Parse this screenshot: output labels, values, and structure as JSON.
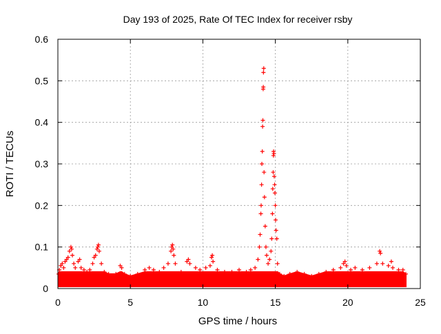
{
  "chart_data": {
    "type": "scatter",
    "title": "Day 193 of 2025, Rate Of TEC Index for receiver rsby",
    "xlabel": "GPS time / hours",
    "ylabel": "ROTI / TECUs",
    "xlim": [
      0,
      25
    ],
    "ylim": [
      0,
      0.6
    ],
    "xticks": [
      0,
      5,
      10,
      15,
      20,
      25
    ],
    "xtick_labels": [
      "0",
      "5",
      "10",
      "15",
      "20",
      "25"
    ],
    "yticks": [
      0,
      0.1,
      0.2,
      0.3,
      0.4,
      0.5,
      0.6
    ],
    "ytick_labels": [
      "0",
      "0.1",
      "0.2",
      "0.3",
      "0.4",
      "0.5",
      "0.6"
    ],
    "grid": true,
    "marker": "+",
    "series": [
      {
        "name": "ROTI",
        "color": "#ff0000",
        "points": [
          [
            0.05,
            0.035
          ],
          [
            0.1,
            0.045
          ],
          [
            0.2,
            0.055
          ],
          [
            0.3,
            0.06
          ],
          [
            0.4,
            0.05
          ],
          [
            0.5,
            0.065
          ],
          [
            0.6,
            0.07
          ],
          [
            0.7,
            0.075
          ],
          [
            0.8,
            0.09
          ],
          [
            0.9,
            0.1
          ],
          [
            0.95,
            0.095
          ],
          [
            1.0,
            0.08
          ],
          [
            1.1,
            0.06
          ],
          [
            1.2,
            0.05
          ],
          [
            1.4,
            0.065
          ],
          [
            1.5,
            0.07
          ],
          [
            1.6,
            0.05
          ],
          [
            1.8,
            0.045
          ],
          [
            2.0,
            0.04
          ],
          [
            2.2,
            0.045
          ],
          [
            2.4,
            0.06
          ],
          [
            2.5,
            0.075
          ],
          [
            2.6,
            0.08
          ],
          [
            2.7,
            0.095
          ],
          [
            2.75,
            0.1
          ],
          [
            2.8,
            0.105
          ],
          [
            2.85,
            0.09
          ],
          [
            3.0,
            0.06
          ],
          [
            3.2,
            0.04
          ],
          [
            3.5,
            0.035
          ],
          [
            4.0,
            0.035
          ],
          [
            4.3,
            0.055
          ],
          [
            4.4,
            0.05
          ],
          [
            4.6,
            0.035
          ],
          [
            5.0,
            0.03
          ],
          [
            5.5,
            0.035
          ],
          [
            6.0,
            0.045
          ],
          [
            6.3,
            0.05
          ],
          [
            6.6,
            0.045
          ],
          [
            7.0,
            0.04
          ],
          [
            7.3,
            0.05
          ],
          [
            7.6,
            0.06
          ],
          [
            7.8,
            0.09
          ],
          [
            7.85,
            0.1
          ],
          [
            7.9,
            0.105
          ],
          [
            7.95,
            0.095
          ],
          [
            8.0,
            0.08
          ],
          [
            8.1,
            0.06
          ],
          [
            8.5,
            0.04
          ],
          [
            8.9,
            0.065
          ],
          [
            9.0,
            0.07
          ],
          [
            9.1,
            0.06
          ],
          [
            9.5,
            0.05
          ],
          [
            9.8,
            0.045
          ],
          [
            10.2,
            0.05
          ],
          [
            10.5,
            0.055
          ],
          [
            10.6,
            0.075
          ],
          [
            10.65,
            0.08
          ],
          [
            10.7,
            0.065
          ],
          [
            11.0,
            0.045
          ],
          [
            11.5,
            0.04
          ],
          [
            12.0,
            0.04
          ],
          [
            12.5,
            0.045
          ],
          [
            13.0,
            0.04
          ],
          [
            13.3,
            0.045
          ],
          [
            13.6,
            0.05
          ],
          [
            13.8,
            0.07
          ],
          [
            13.9,
            0.1
          ],
          [
            13.95,
            0.13
          ],
          [
            14.0,
            0.18
          ],
          [
            14.02,
            0.2
          ],
          [
            14.05,
            0.25
          ],
          [
            14.07,
            0.3
          ],
          [
            14.1,
            0.33
          ],
          [
            14.12,
            0.39
          ],
          [
            14.14,
            0.405
          ],
          [
            14.16,
            0.48
          ],
          [
            14.17,
            0.485
          ],
          [
            14.18,
            0.52
          ],
          [
            14.2,
            0.53
          ],
          [
            14.22,
            0.28
          ],
          [
            14.25,
            0.22
          ],
          [
            14.3,
            0.15
          ],
          [
            14.35,
            0.1
          ],
          [
            14.4,
            0.08
          ],
          [
            14.5,
            0.06
          ],
          [
            14.6,
            0.07
          ],
          [
            14.7,
            0.09
          ],
          [
            14.75,
            0.12
          ],
          [
            14.8,
            0.18
          ],
          [
            14.82,
            0.24
          ],
          [
            14.85,
            0.28
          ],
          [
            14.87,
            0.32
          ],
          [
            14.88,
            0.33
          ],
          [
            14.9,
            0.325
          ],
          [
            14.92,
            0.27
          ],
          [
            14.95,
            0.25
          ],
          [
            14.97,
            0.23
          ],
          [
            15.0,
            0.2
          ],
          [
            15.02,
            0.165
          ],
          [
            15.05,
            0.14
          ],
          [
            15.1,
            0.12
          ],
          [
            15.15,
            0.06
          ],
          [
            15.3,
            0.035
          ],
          [
            15.6,
            0.03
          ],
          [
            16.0,
            0.035
          ],
          [
            16.5,
            0.04
          ],
          [
            17.0,
            0.035
          ],
          [
            17.5,
            0.03
          ],
          [
            18.0,
            0.035
          ],
          [
            18.5,
            0.04
          ],
          [
            19.0,
            0.045
          ],
          [
            19.5,
            0.05
          ],
          [
            19.7,
            0.06
          ],
          [
            19.8,
            0.065
          ],
          [
            19.9,
            0.055
          ],
          [
            20.2,
            0.045
          ],
          [
            20.5,
            0.05
          ],
          [
            21.0,
            0.045
          ],
          [
            21.5,
            0.05
          ],
          [
            22.0,
            0.06
          ],
          [
            22.2,
            0.09
          ],
          [
            22.25,
            0.085
          ],
          [
            22.4,
            0.06
          ],
          [
            22.8,
            0.055
          ],
          [
            23.0,
            0.065
          ],
          [
            23.1,
            0.05
          ],
          [
            23.5,
            0.045
          ],
          [
            23.8,
            0.045
          ],
          [
            24.0,
            0.035
          ]
        ]
      }
    ]
  }
}
